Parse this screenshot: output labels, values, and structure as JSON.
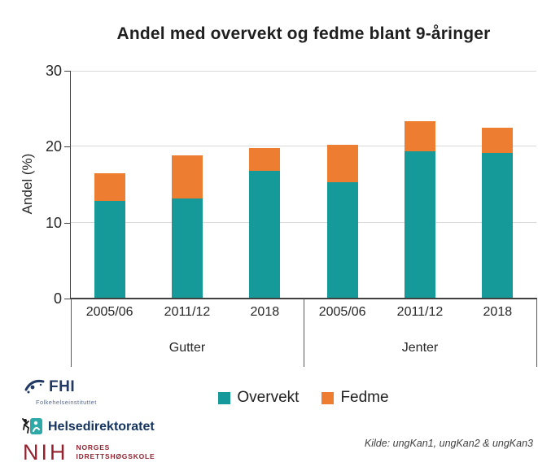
{
  "title": "Andel med overvekt og fedme blant 9-åringer",
  "chart_data": {
    "type": "bar",
    "stacked": true,
    "title": "Andel med overvekt og fedme blant 9-åringer",
    "xlabel": "",
    "ylabel": "Andel (%)",
    "ylim": [
      0,
      30
    ],
    "yticks": [
      30,
      20,
      10,
      0
    ],
    "grid": true,
    "legend_position": "bottom",
    "group_labels": [
      "Gutter",
      "Jenter"
    ],
    "categories": [
      "2005/06",
      "2011/12",
      "2018",
      "2005/06",
      "2011/12",
      "2018"
    ],
    "series": [
      {
        "name": "Overvekt",
        "color": "#169999",
        "values": [
          12.9,
          13.2,
          16.8,
          15.3,
          19.4,
          19.2
        ]
      },
      {
        "name": "Fedme",
        "color": "#ED7D31",
        "values": [
          3.6,
          5.7,
          3.0,
          4.9,
          4.0,
          3.3
        ]
      }
    ]
  },
  "legend": {
    "items": [
      {
        "label": "Overvekt",
        "color": "#169999"
      },
      {
        "label": "Fedme",
        "color": "#ED7D31"
      }
    ]
  },
  "colors": {
    "overvekt": "#169999",
    "fedme": "#ED7D31",
    "axis": "#404040",
    "gridline": "#D9D9D9"
  },
  "footer": {
    "source": "Kilde: ungKan1, ungKan2 & ungKan3",
    "logos": [
      {
        "name": "FHI",
        "subtitle": "Folkehelseinstituttet"
      },
      {
        "name": "Helsedirektoratet"
      },
      {
        "name": "NIH",
        "lines": [
          "NORGES",
          "IDRETTSHØGSKOLE"
        ]
      }
    ]
  }
}
